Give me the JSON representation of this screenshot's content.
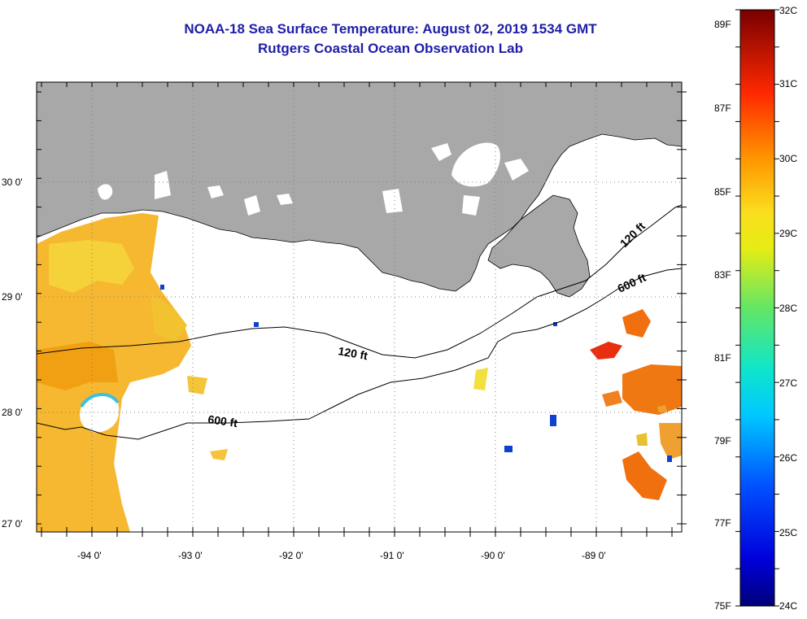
{
  "header": {
    "title": "NOAA-18 Sea Surface Temperature:  August 02, 2019 1534 GMT",
    "subtitle": "Rutgers Coastal Ocean Observation Lab"
  },
  "map": {
    "lat_labels": [
      "30 0'",
      "29 0'",
      "28 0'",
      "27 0'"
    ],
    "lon_labels": [
      "-94 0'",
      "-93 0'",
      "-92 0'",
      "-91 0'",
      "-90 0'",
      "-89 0'"
    ],
    "contour_labels": {
      "c120_west": "120 ft",
      "c120_east": "120 ft",
      "c600_west": "600 ft",
      "c600_east": "600 ft"
    },
    "colors": {
      "land": "#a8a8a8",
      "ocean": "#ffffff",
      "contour": "#000000"
    }
  },
  "colorbar": {
    "fahrenheit_labels": [
      "89F",
      "87F",
      "85F",
      "83F",
      "81F",
      "79F",
      "77F",
      "75F"
    ],
    "celsius_labels": [
      "32C",
      "31C",
      "30C",
      "29C",
      "28C",
      "27C",
      "26C",
      "25C",
      "24C"
    ],
    "range_c": [
      24,
      32
    ]
  }
}
